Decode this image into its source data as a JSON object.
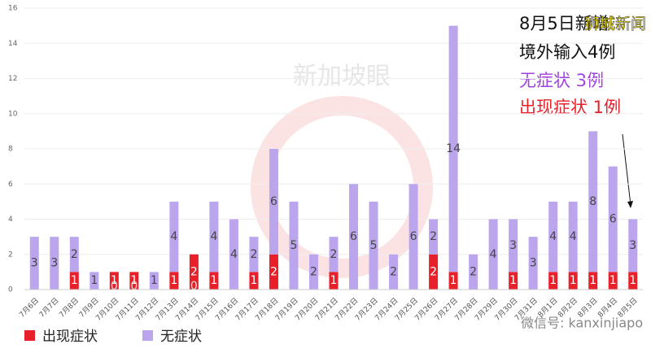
{
  "chart_data": {
    "type": "stacked_bar",
    "categories": [
      "7月6日",
      "7月7日",
      "7月8日",
      "7月9日",
      "7月10日",
      "7月11日",
      "7月12日",
      "7月13日",
      "7月14日",
      "7月15日",
      "7月16日",
      "7月17日",
      "7月18日",
      "7月19日",
      "7月20日",
      "7月21日",
      "7月22日",
      "7月23日",
      "7月24日",
      "7月25日",
      "7月26日",
      "7月27日",
      "7月28日",
      "7月29日",
      "7月30日",
      "7月31日",
      "8月1日",
      "8月2日",
      "8月3日",
      "8月4日",
      "8月5日"
    ],
    "series": [
      {
        "name": "出现症状",
        "color": "#e8202a",
        "values": [
          0,
          0,
          1,
          0,
          1,
          1,
          0,
          1,
          2,
          1,
          0,
          1,
          2,
          0,
          0,
          1,
          0,
          0,
          0,
          0,
          2,
          1,
          0,
          0,
          1,
          0,
          1,
          1,
          1,
          1,
          1
        ]
      },
      {
        "name": "无症状",
        "color": "#bba6ee",
        "values": [
          3,
          3,
          2,
          1,
          0,
          0,
          1,
          4,
          0,
          4,
          4,
          2,
          6,
          5,
          2,
          2,
          6,
          5,
          2,
          6,
          2,
          14,
          2,
          4,
          3,
          3,
          4,
          4,
          8,
          6,
          3
        ]
      }
    ],
    "ylim": [
      0,
      16
    ],
    "yticks": [
      0,
      2,
      4,
      6,
      8,
      10,
      12,
      14,
      16
    ],
    "grid": true,
    "annotations": [
      "8月5日新增",
      "境外输入4例",
      "无症状 3例",
      "出现症状 1例"
    ],
    "watermark": "新加坡眼",
    "overlay": "狮城新闻",
    "source": "微信号: kanxinjiapo"
  }
}
